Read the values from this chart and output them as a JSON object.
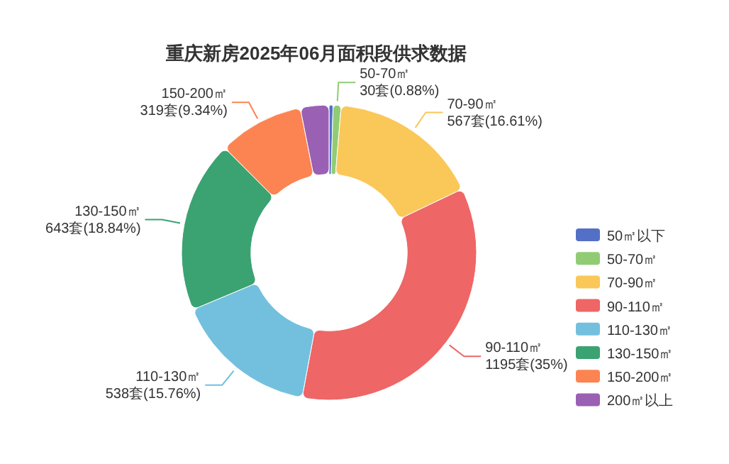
{
  "chart_data": {
    "type": "donut",
    "title": "重庆新房2025年06月面积段供求数据",
    "categories": [
      "50㎡以下",
      "50-70㎡",
      "70-90㎡",
      "90-110㎡",
      "110-130㎡",
      "130-150㎡",
      "150-200㎡",
      "200㎡以上"
    ],
    "values": [
      15,
      30,
      567,
      1195,
      538,
      643,
      319,
      107
    ],
    "colors": [
      "#5470c6",
      "#91cc75",
      "#fac858",
      "#ee6666",
      "#73c0de",
      "#3ba272",
      "#fc8452",
      "#9a60b4"
    ],
    "value_labels": [
      null,
      "30套(0.88%)",
      "567套(16.61%)",
      "1195套(35%)",
      "538套(15.76%)",
      "643套(18.84%)",
      "319套(9.34%)",
      null
    ],
    "legend": "right"
  }
}
